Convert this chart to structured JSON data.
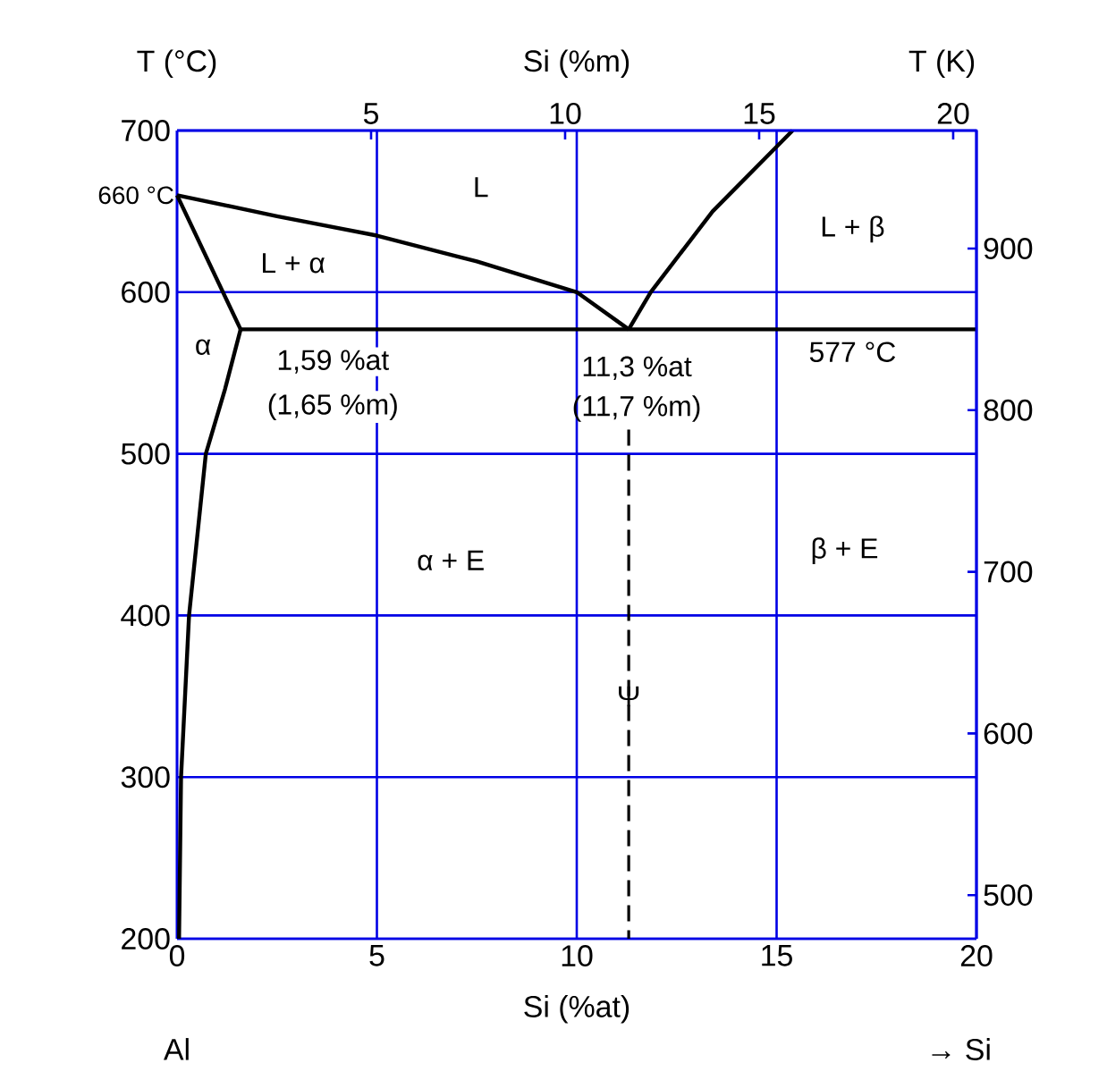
{
  "chart_data": {
    "type": "line",
    "xlabel": "Si (%at)",
    "ylabel": "T (°C)",
    "x2label": "Si (%m)",
    "y2label": "T (K)",
    "xlim": [
      0,
      20
    ],
    "xticks": [
      0,
      5,
      10,
      15,
      20
    ],
    "ylim": [
      200,
      700
    ],
    "yticks": [
      200,
      300,
      400,
      500,
      600,
      {
        "value": 660,
        "label": "660 °C"
      },
      700
    ],
    "x2lim": [
      0,
      20.6
    ],
    "x2ticks": [
      5,
      10,
      15,
      20
    ],
    "y2lim": [
      473,
      973
    ],
    "y2ticks": [
      500,
      600,
      700,
      800,
      900
    ],
    "grid": true,
    "marker": "none",
    "series": [
      {
        "color": "#000000",
        "x": [
          0,
          2.5,
          5,
          7.5,
          10,
          11.3
        ],
        "values": [
          660,
          647,
          635,
          619,
          600,
          577
        ]
      },
      {
        "color": "#000000",
        "x": [
          11.3,
          11.85,
          13.4,
          15.4
        ],
        "values": [
          577,
          600,
          650,
          700
        ]
      },
      {
        "color": "#000000",
        "x": [
          0,
          1.59
        ],
        "values": [
          660,
          577
        ]
      },
      {
        "color": "#000000",
        "x": [
          1.59,
          20
        ],
        "values": [
          577,
          577
        ]
      },
      {
        "color": "#000000",
        "x": [
          1.59,
          1.2,
          0.72,
          0.3,
          0.1,
          0.05
        ],
        "values": [
          577,
          540,
          500,
          400,
          300,
          200
        ]
      },
      {
        "color": "#000000",
        "line_style": "dashed",
        "x": [
          11.3,
          11.3
        ],
        "values": [
          515,
          200
        ]
      }
    ],
    "annotations": [
      "L",
      "L + α",
      "α",
      "1,59 %at",
      "(1,65 %m)",
      "11,3 %at",
      "(11,7 %m)",
      "577 °C",
      "L + β",
      "α + E",
      "β + E",
      "Ψ",
      "Al",
      "→ Si"
    ]
  }
}
